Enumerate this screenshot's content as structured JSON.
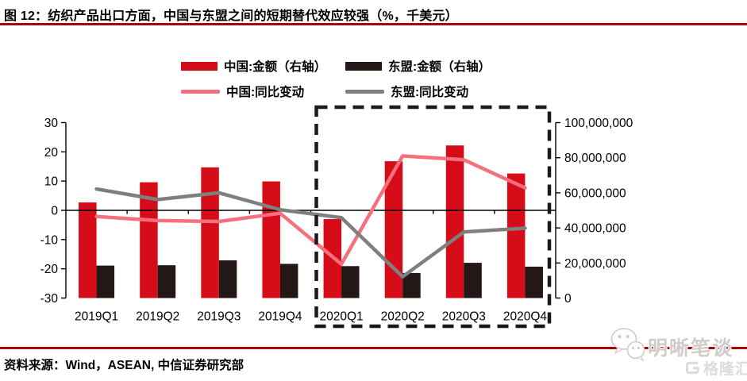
{
  "header": {
    "title": "图 12：纺织产品出口方面，中国与东盟之间的短期替代效应较强（%，千美元）"
  },
  "legend": [
    {
      "label": "中国:金额（右轴）",
      "swatch": "bar",
      "color": "#d60c18"
    },
    {
      "label": "东盟:金额（右轴）",
      "swatch": "bar",
      "color": "#231815"
    },
    {
      "label": "中国:同比变动",
      "swatch": "line",
      "color": "#f5707e"
    },
    {
      "label": "东盟:同比变动",
      "swatch": "line",
      "color": "#7f7f7f"
    }
  ],
  "chart_data": {
    "type": "bar",
    "subtype": "bar-line-combo",
    "title": "纺织产品出口：中国 vs 东盟",
    "units": "（%，千美元）",
    "categories": [
      "2019Q1",
      "2019Q2",
      "2019Q3",
      "2019Q4",
      "2020Q1",
      "2020Q2",
      "2020Q3",
      "2020Q4"
    ],
    "series": [
      {
        "name": "中国:金额（右轴）",
        "type": "bar",
        "axis": "right",
        "color": "#d60c18",
        "values": [
          54500000,
          66000000,
          74500000,
          66500000,
          45000000,
          78000000,
          87000000,
          71000000
        ]
      },
      {
        "name": "东盟:金额（右轴）",
        "type": "bar",
        "axis": "right",
        "color": "#231815",
        "values": [
          18500000,
          18700000,
          21500000,
          19500000,
          18200000,
          14300000,
          20100000,
          17900000
        ]
      },
      {
        "name": "中国:同比变动",
        "type": "line",
        "axis": "left",
        "color": "#f5707e",
        "values": [
          -2.1,
          -3.5,
          -3.8,
          -1.0,
          -18.4,
          18.6,
          17.3,
          7.7
        ]
      },
      {
        "name": "东盟:同比变动",
        "type": "line",
        "axis": "left",
        "color": "#7f7f7f",
        "values": [
          7.3,
          3.7,
          6.0,
          0.2,
          -2.5,
          -22.7,
          -7.4,
          -6.1
        ]
      }
    ],
    "axis_left": {
      "min": -30,
      "max": 30,
      "step": 10
    },
    "axis_right": {
      "min": 0,
      "max": 100000000,
      "step": 20000000
    },
    "gridlines": false,
    "legend_position": "top",
    "highlight_box": {
      "from": "2020Q1",
      "to": "2020Q4",
      "style": "black-dashed"
    }
  },
  "footer": {
    "source": "资料来源：Wind，ASEAN, 中信证券研究部"
  },
  "watermark": {
    "text": "明晰笔谈",
    "logo_text": "格隆汇"
  },
  "colors": {
    "accent_rule": "#ab0606",
    "china_bar": "#d60c18",
    "asean_bar": "#231815",
    "china_line": "#f5707e",
    "asean_line": "#7f7f7f",
    "highlight_dash": "#1a1a1a"
  }
}
